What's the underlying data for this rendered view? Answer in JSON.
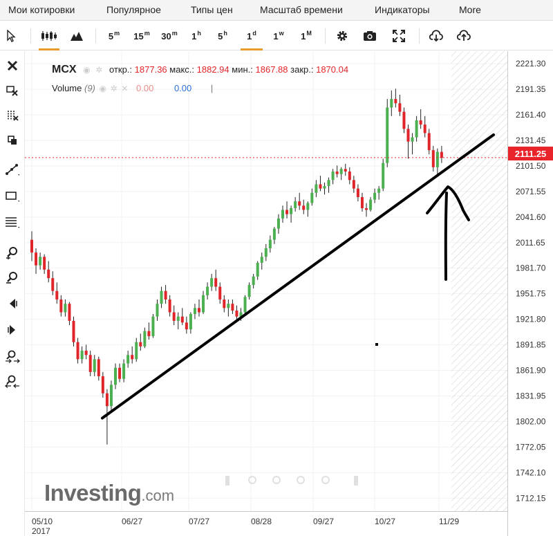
{
  "menu": {
    "items": [
      "Мои котировки",
      "Популярное",
      "Типы цен",
      "Масштаб времени",
      "Индикаторы",
      "More"
    ]
  },
  "toolbar": {
    "timeframes": [
      {
        "base": "5",
        "sup": "m"
      },
      {
        "base": "15",
        "sup": "m"
      },
      {
        "base": "30",
        "sup": "m"
      },
      {
        "base": "1",
        "sup": "h"
      },
      {
        "base": "5",
        "sup": "h"
      },
      {
        "base": "1",
        "sup": "d"
      },
      {
        "base": "1",
        "sup": "w"
      },
      {
        "base": "1",
        "sup": "M"
      }
    ],
    "active_timeframe": "1d",
    "active_color": "#e89a2c"
  },
  "legend": {
    "symbol": "MCX",
    "open_label": "откр.:",
    "open": "1877.36",
    "high_label": "макс.:",
    "high": "1882.94",
    "low_label": "мин.:",
    "low": "1867.88",
    "close_label": "закр.:",
    "close": "1870.04",
    "volume_label": "Volume",
    "volume_param": "(9)",
    "volume_val1": "0.00",
    "volume_val2": "0.00",
    "volume_sep": "|"
  },
  "price_tag": "2111.25",
  "watermark": {
    "brand": "Investing",
    "suffix": ".com"
  },
  "colors": {
    "up": "#4caf50",
    "down": "#e0252a",
    "wick": "#222222",
    "tag": "#e8242a"
  },
  "chart_data": {
    "type": "candlestick",
    "title": "MCX",
    "xlabel": "",
    "ylabel": "",
    "ylim": [
      1697.0,
      2236.0
    ],
    "y_ticks": [
      "2221.30",
      "2191.35",
      "2161.40",
      "2131.45",
      "2101.50",
      "2071.55",
      "2041.60",
      "2011.65",
      "1981.70",
      "1951.75",
      "1921.80",
      "1891.85",
      "1861.90",
      "1831.95",
      "1802.00",
      "1772.05",
      "1742.10",
      "1712.15"
    ],
    "x_ticks": [
      "05/10",
      "06/27",
      "07/27",
      "08/28",
      "09/27",
      "10/27",
      "11/29"
    ],
    "x_tick_year": "2017",
    "last_price_line": 2111.25,
    "trendline": {
      "from": {
        "date": "06/05",
        "price": 1806
      },
      "to": {
        "date": "12/22",
        "price": 2138
      }
    },
    "candles": [
      [
        2015,
        2025,
        1990,
        2000
      ],
      [
        2000,
        2005,
        1975,
        1985
      ],
      [
        1985,
        2000,
        1980,
        1995
      ],
      [
        1995,
        1998,
        1975,
        1980
      ],
      [
        1980,
        1990,
        1965,
        1970
      ],
      [
        1970,
        1978,
        1950,
        1955
      ],
      [
        1955,
        1965,
        1940,
        1945
      ],
      [
        1945,
        1950,
        1925,
        1930
      ],
      [
        1930,
        1945,
        1925,
        1940
      ],
      [
        1940,
        1942,
        1915,
        1920
      ],
      [
        1920,
        1925,
        1890,
        1895
      ],
      [
        1895,
        1900,
        1870,
        1875
      ],
      [
        1875,
        1890,
        1870,
        1885
      ],
      [
        1885,
        1892,
        1875,
        1880
      ],
      [
        1880,
        1885,
        1855,
        1860
      ],
      [
        1860,
        1880,
        1855,
        1875
      ],
      [
        1875,
        1878,
        1850,
        1855
      ],
      [
        1855,
        1860,
        1830,
        1835
      ],
      [
        1835,
        1840,
        1775,
        1820
      ],
      [
        1820,
        1850,
        1815,
        1845
      ],
      [
        1845,
        1870,
        1840,
        1865
      ],
      [
        1865,
        1870,
        1848,
        1852
      ],
      [
        1852,
        1875,
        1848,
        1870
      ],
      [
        1870,
        1885,
        1865,
        1880
      ],
      [
        1880,
        1890,
        1870,
        1875
      ],
      [
        1875,
        1900,
        1872,
        1895
      ],
      [
        1895,
        1905,
        1885,
        1890
      ],
      [
        1890,
        1912,
        1888,
        1908
      ],
      [
        1908,
        1918,
        1898,
        1902
      ],
      [
        1902,
        1928,
        1900,
        1925
      ],
      [
        1925,
        1945,
        1920,
        1940
      ],
      [
        1940,
        1960,
        1935,
        1955
      ],
      [
        1955,
        1962,
        1940,
        1945
      ],
      [
        1945,
        1950,
        1925,
        1930
      ],
      [
        1930,
        1938,
        1915,
        1920
      ],
      [
        1920,
        1930,
        1910,
        1925
      ],
      [
        1925,
        1935,
        1915,
        1918
      ],
      [
        1918,
        1925,
        1905,
        1910
      ],
      [
        1910,
        1930,
        1905,
        1928
      ],
      [
        1928,
        1940,
        1922,
        1935
      ],
      [
        1935,
        1945,
        1925,
        1930
      ],
      [
        1930,
        1955,
        1928,
        1950
      ],
      [
        1950,
        1965,
        1945,
        1960
      ],
      [
        1960,
        1975,
        1955,
        1970
      ],
      [
        1970,
        1980,
        1955,
        1960
      ],
      [
        1960,
        1965,
        1940,
        1945
      ],
      [
        1945,
        1950,
        1930,
        1935
      ],
      [
        1935,
        1945,
        1925,
        1940
      ],
      [
        1940,
        1945,
        1928,
        1932
      ],
      [
        1932,
        1938,
        1920,
        1925
      ],
      [
        1925,
        1935,
        1920,
        1930
      ],
      [
        1930,
        1950,
        1928,
        1948
      ],
      [
        1948,
        1965,
        1945,
        1962
      ],
      [
        1962,
        1975,
        1958,
        1972
      ],
      [
        1972,
        1990,
        1968,
        1988
      ],
      [
        1988,
        2000,
        1980,
        1995
      ],
      [
        1995,
        2010,
        1990,
        2005
      ],
      [
        2005,
        2020,
        2000,
        2015
      ],
      [
        2015,
        2030,
        2010,
        2028
      ],
      [
        2028,
        2045,
        2022,
        2040
      ],
      [
        2040,
        2055,
        2035,
        2050
      ],
      [
        2050,
        2060,
        2040,
        2045
      ],
      [
        2045,
        2055,
        2035,
        2052
      ],
      [
        2052,
        2065,
        2048,
        2060
      ],
      [
        2060,
        2070,
        2050,
        2055
      ],
      [
        2055,
        2062,
        2045,
        2050
      ],
      [
        2050,
        2060,
        2042,
        2058
      ],
      [
        2058,
        2075,
        2055,
        2070
      ],
      [
        2070,
        2085,
        2065,
        2080
      ],
      [
        2080,
        2090,
        2072,
        2075
      ],
      [
        2075,
        2082,
        2068,
        2078
      ],
      [
        2078,
        2088,
        2070,
        2085
      ],
      [
        2085,
        2098,
        2080,
        2095
      ],
      [
        2095,
        2102,
        2088,
        2092
      ],
      [
        2092,
        2100,
        2085,
        2098
      ],
      [
        2098,
        2104,
        2090,
        2095
      ],
      [
        2095,
        2100,
        2080,
        2085
      ],
      [
        2085,
        2090,
        2070,
        2075
      ],
      [
        2075,
        2080,
        2060,
        2065
      ],
      [
        2065,
        2070,
        2048,
        2052
      ],
      [
        2052,
        2058,
        2042,
        2050
      ],
      [
        2050,
        2065,
        2048,
        2062
      ],
      [
        2062,
        2075,
        2058,
        2070
      ],
      [
        2070,
        2078,
        2062,
        2075
      ],
      [
        2075,
        2110,
        2072,
        2105
      ],
      [
        2105,
        2180,
        2100,
        2170
      ],
      [
        2170,
        2190,
        2160,
        2180
      ],
      [
        2180,
        2192,
        2170,
        2175
      ],
      [
        2175,
        2185,
        2160,
        2165
      ],
      [
        2165,
        2170,
        2140,
        2145
      ],
      [
        2145,
        2150,
        2110,
        2130
      ],
      [
        2130,
        2140,
        2115,
        2135
      ],
      [
        2135,
        2160,
        2130,
        2155
      ],
      [
        2155,
        2168,
        2145,
        2150
      ],
      [
        2150,
        2160,
        2135,
        2140
      ],
      [
        2140,
        2145,
        2115,
        2120
      ],
      [
        2120,
        2125,
        2095,
        2100
      ],
      [
        2100,
        2122,
        2090,
        2118
      ],
      [
        2118,
        2125,
        2105,
        2111
      ]
    ]
  }
}
